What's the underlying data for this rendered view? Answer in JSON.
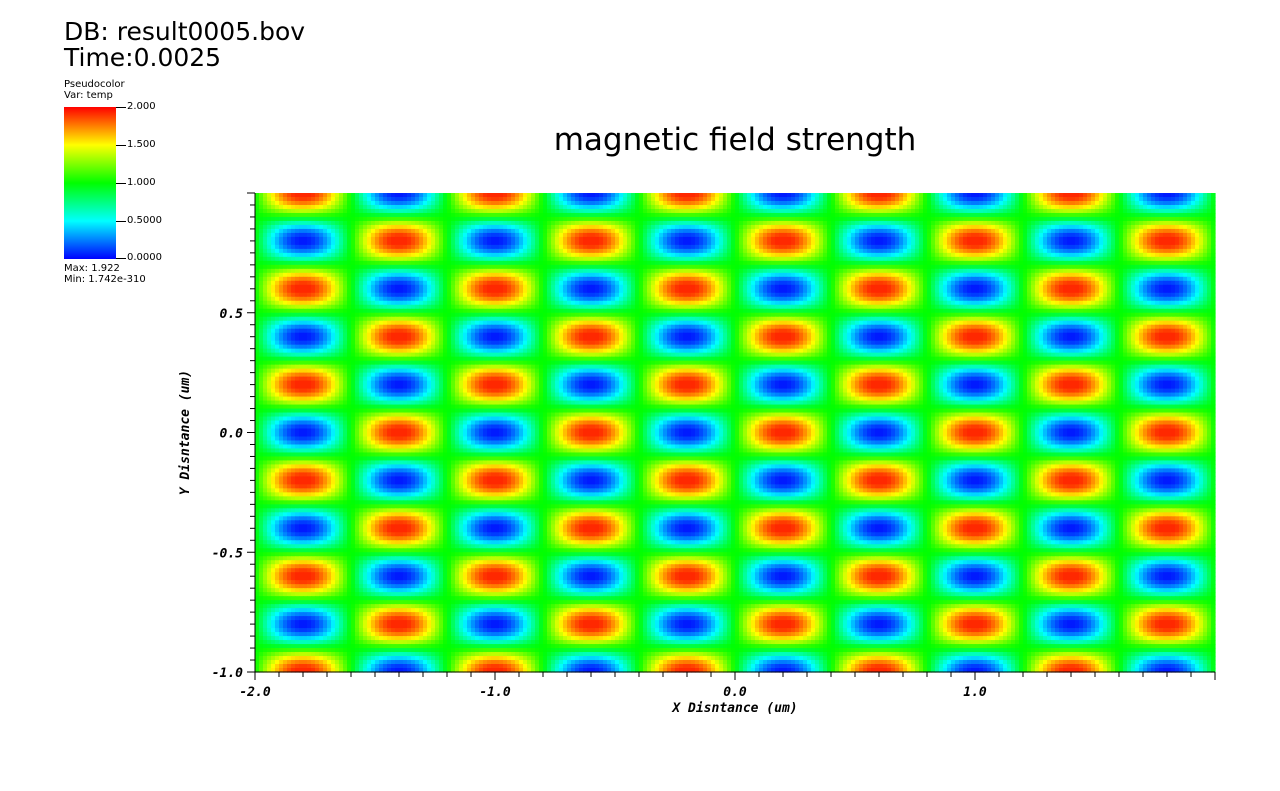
{
  "header": {
    "db_label": "DB: result0005.bov",
    "time_label": "Time:0.0025"
  },
  "legend": {
    "plot_type": "Pseudocolor",
    "var_label": "Var: temp",
    "ticks": [
      "2.000",
      "1.500",
      "1.000",
      "0.5000",
      "0.0000"
    ],
    "max_label": "Max:  1.922",
    "min_label": "Min:  1.742e-310",
    "colormap": [
      "#0000ff",
      "#00ffff",
      "#00ff00",
      "#ffff00",
      "#ff0000"
    ]
  },
  "chart_data": {
    "type": "heatmap",
    "title": "magnetic field strength",
    "xlabel": "X Disntance (um)",
    "ylabel": "Y Disntance (um)",
    "xlim": [
      -2.0,
      2.0
    ],
    "ylim": [
      -1.0,
      1.0
    ],
    "x_tick_labels": [
      "-2.0",
      "-1.0",
      "0.0",
      "1.0"
    ],
    "x_tick_values": [
      -2.0,
      -1.0,
      0.0,
      1.0
    ],
    "y_tick_labels": [
      "0.5",
      "0.0",
      "-0.5",
      "-1.0"
    ],
    "y_tick_values": [
      0.5,
      0.0,
      -0.5,
      -1.0
    ],
    "value_range": [
      0.0,
      2.0
    ],
    "pattern": "periodic staggered lattice of maxima (red/orange) and minima (blue); period 0.4 um in x, 0.2 um in y; maxima near x = 0.2 + 0.4k, y = 0.0 + 0.2k; minima offset by half a period",
    "x_period": 0.4,
    "y_period": 0.2,
    "max_value": 1.922,
    "min_value": 1.742e-310
  }
}
